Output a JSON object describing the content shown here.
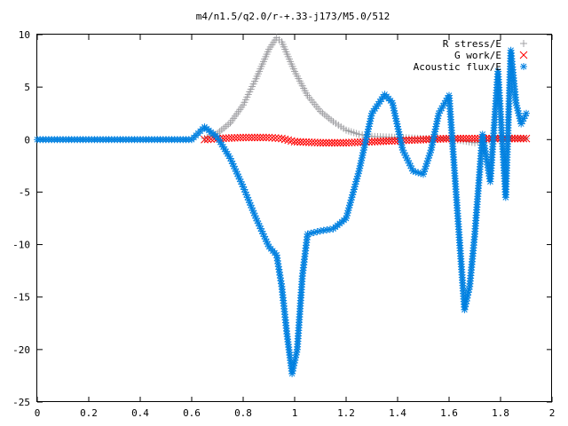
{
  "chart_data": {
    "type": "scatter",
    "title": "m4/n1.5/q2.0/r-+.33-j173/M5.0/512",
    "xlabel": "",
    "ylabel": "",
    "xlim": [
      0,
      2
    ],
    "ylim": [
      -25,
      10
    ],
    "xticks": [
      0,
      0.2,
      0.4,
      0.6,
      0.8,
      1,
      1.2,
      1.4,
      1.6,
      1.8,
      2
    ],
    "xtick_labels": [
      "0",
      "0.2",
      "0.4",
      "0.6",
      "0.8",
      "1",
      "1.2",
      "1.4",
      "1.6",
      "1.8",
      "2"
    ],
    "yticks": [
      10,
      5,
      0,
      -5,
      -10,
      -15,
      -20,
      -25
    ],
    "ytick_labels": [
      "10",
      "5",
      "0",
      "-5",
      "-10",
      "-15",
      "-20",
      "-25"
    ],
    "grid": false,
    "legend_position": "top-right",
    "series": [
      {
        "name": "R stress/E",
        "marker": "+",
        "color": "#a0a0a4",
        "x": [
          0.65,
          0.7,
          0.75,
          0.8,
          0.85,
          0.9,
          0.93,
          0.95,
          1.0,
          1.05,
          1.1,
          1.15,
          1.2,
          1.25,
          1.3,
          1.4,
          1.5,
          1.6,
          1.7,
          1.8,
          1.9
        ],
        "y": [
          0.1,
          0.6,
          1.6,
          3.3,
          5.8,
          8.6,
          9.7,
          9.3,
          6.5,
          4.2,
          2.7,
          1.7,
          0.9,
          0.5,
          0.3,
          0.2,
          0.1,
          0.1,
          -0.3,
          0.2,
          0.1
        ]
      },
      {
        "name": "G work/E",
        "marker": "x",
        "color": "#ff0000",
        "x": [
          0.65,
          0.7,
          0.8,
          0.9,
          0.95,
          1.0,
          1.1,
          1.2,
          1.3,
          1.4,
          1.5,
          1.6,
          1.7,
          1.8,
          1.9
        ],
        "y": [
          0.0,
          0.1,
          0.2,
          0.2,
          0.1,
          -0.2,
          -0.3,
          -0.3,
          -0.2,
          -0.1,
          0.0,
          0.1,
          0.1,
          0.1,
          0.1
        ]
      },
      {
        "name": "Acoustic flux/E",
        "marker": "*",
        "color": "#0080e0",
        "x": [
          0.0,
          0.1,
          0.2,
          0.3,
          0.4,
          0.5,
          0.6,
          0.65,
          0.7,
          0.75,
          0.8,
          0.85,
          0.9,
          0.93,
          0.95,
          0.97,
          0.99,
          1.01,
          1.03,
          1.05,
          1.1,
          1.15,
          1.2,
          1.25,
          1.3,
          1.35,
          1.38,
          1.42,
          1.46,
          1.5,
          1.53,
          1.56,
          1.6,
          1.63,
          1.66,
          1.68,
          1.7,
          1.73,
          1.76,
          1.79,
          1.82,
          1.84,
          1.86,
          1.88,
          1.9
        ],
        "y": [
          0,
          0,
          0,
          0,
          0,
          0,
          0,
          1.2,
          0.2,
          -1.8,
          -4.5,
          -7.5,
          -10.2,
          -11.0,
          -14.0,
          -18.5,
          -22.3,
          -20.0,
          -13.0,
          -9.0,
          -8.7,
          -8.5,
          -7.5,
          -3.0,
          2.5,
          4.3,
          3.5,
          -1.0,
          -3.0,
          -3.3,
          -1.0,
          2.5,
          4.2,
          -6.0,
          -16.2,
          -14.0,
          -9.0,
          0.5,
          -4.0,
          6.5,
          -5.5,
          8.5,
          3.5,
          1.5,
          2.5
        ]
      }
    ]
  }
}
